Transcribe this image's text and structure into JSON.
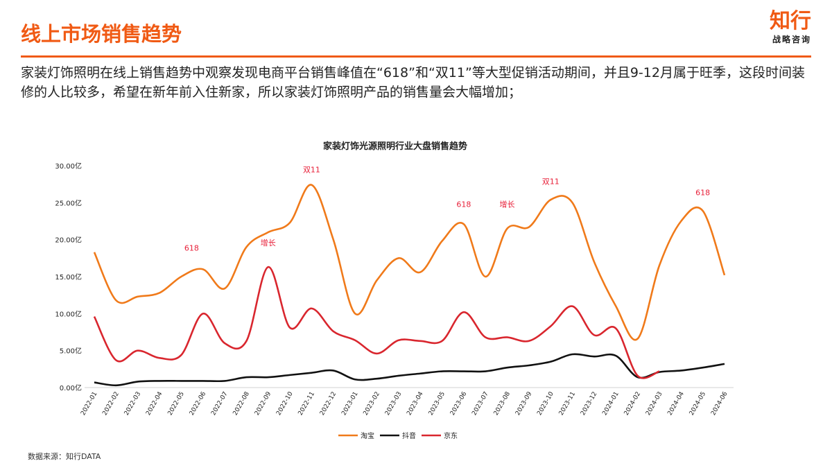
{
  "header": {
    "title": "线上市场销售趋势",
    "logo_main": "知行",
    "logo_sub": "战略咨询"
  },
  "description": "家装灯饰照明在线上销售趋势中观察发现电商平台销售峰值在“618”和“双11”等大型促销活动期间，并且9-12月属于旺季，这段时间装修的人比较多，希望在新年前入住新家，所以家装灯饰照明产品的销售量会大幅增加；",
  "source": "数据来源：知行DATA",
  "chart_data": {
    "type": "line",
    "title": "家装灯饰光源照明行业大盘销售趋势",
    "ylim": [
      0,
      30
    ],
    "y_ticks": [
      "0.00亿",
      "5.00亿",
      "10.00亿",
      "15.00亿",
      "20.00亿",
      "25.00亿",
      "30.00亿"
    ],
    "unit": "亿",
    "grid": false,
    "legend_position": "bottom",
    "categories": [
      "2022-01",
      "2022-02",
      "2022-03",
      "2022-04",
      "2022-05",
      "2022-06",
      "2022-07",
      "2022-08",
      "2022-09",
      "2022-10",
      "2022-11",
      "2022-12",
      "2023-01",
      "2023-02",
      "2023-03",
      "2023-04",
      "2023-05",
      "2023-06",
      "2023-07",
      "2023-08",
      "2023-09",
      "2023-10",
      "2023-11",
      "2023-12",
      "2024-01",
      "2024-02",
      "2024-03",
      "2024-04",
      "2024-05",
      "2024-06"
    ],
    "series": [
      {
        "name": "淘宝",
        "color": "#f07a1a",
        "values": [
          18.3,
          11.8,
          12.3,
          12.8,
          15.0,
          16.0,
          13.4,
          19.0,
          21.0,
          22.3,
          27.4,
          20.0,
          10.0,
          14.5,
          17.5,
          15.6,
          19.8,
          22.1,
          15.0,
          21.5,
          21.7,
          25.4,
          25.0,
          17.0,
          11.0,
          6.6,
          16.5,
          22.5,
          23.9,
          15.2
        ]
      },
      {
        "name": "抖音",
        "color": "#111111",
        "values": [
          0.7,
          0.3,
          0.8,
          0.9,
          0.9,
          0.9,
          0.9,
          1.4,
          1.4,
          1.7,
          2.0,
          2.3,
          1.1,
          1.2,
          1.6,
          1.9,
          2.2,
          2.2,
          2.2,
          2.7,
          3.0,
          3.5,
          4.5,
          4.2,
          4.3,
          1.4,
          2.1,
          2.3,
          2.7,
          3.2
        ]
      },
      {
        "name": "京东",
        "color": "#d9262e",
        "values": [
          9.6,
          3.7,
          5.0,
          4.0,
          4.4,
          10.0,
          6.0,
          6.3,
          16.3,
          8.1,
          10.7,
          7.6,
          6.4,
          4.6,
          6.4,
          6.3,
          6.3,
          10.2,
          6.8,
          6.8,
          6.3,
          8.3,
          11.0,
          7.1,
          8.0,
          1.6,
          2.2,
          null,
          null,
          null
        ]
      }
    ],
    "annotations": [
      {
        "text": "618",
        "category": "2022-05",
        "y": 18.5
      },
      {
        "text": "增长",
        "category": "2022-09",
        "y": 19.2
      },
      {
        "text": "双11",
        "category": "2022-11",
        "y": 29.1
      },
      {
        "text": "618",
        "category": "2023-06",
        "y": 24.4
      },
      {
        "text": "增长",
        "category": "2023-08",
        "y": 24.4
      },
      {
        "text": "双11",
        "category": "2023-10",
        "y": 27.5
      },
      {
        "text": "618",
        "category": "2024-05",
        "y": 26.0
      }
    ],
    "annotation_color": "#e8213a"
  }
}
